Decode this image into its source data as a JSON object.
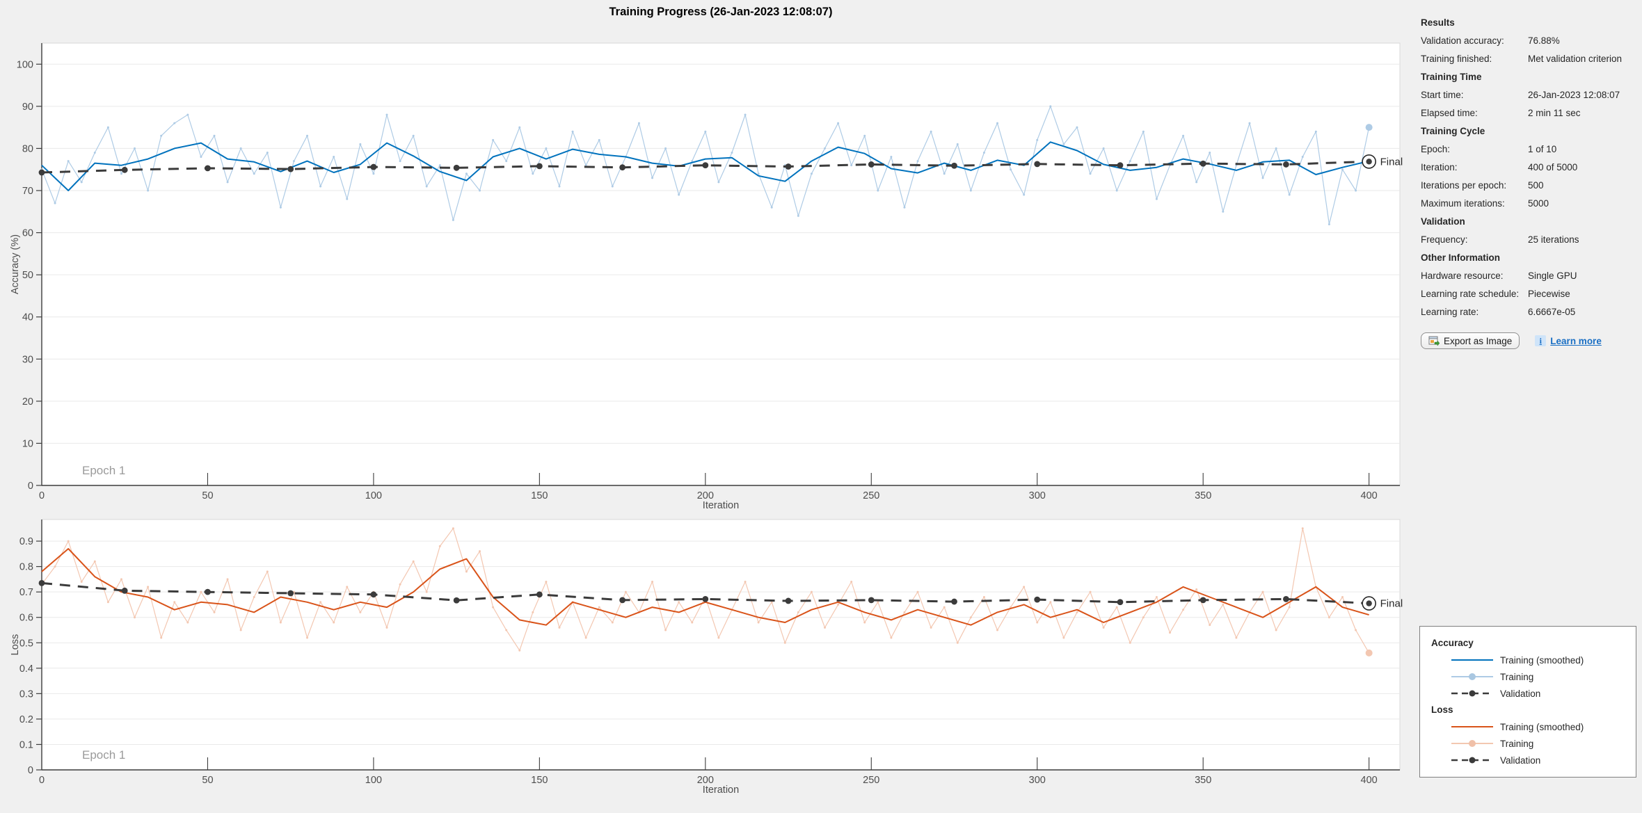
{
  "title": "Training Progress (26-Jan-2023 12:08:07)",
  "panel": {
    "sections": [
      {
        "header": "Results",
        "rows": [
          {
            "label": "Validation accuracy:",
            "value": "76.88%"
          },
          {
            "label": "Training finished:",
            "value": "Met validation criterion"
          }
        ]
      },
      {
        "header": "Training Time",
        "rows": [
          {
            "label": "Start time:",
            "value": "26-Jan-2023 12:08:07"
          },
          {
            "label": "Elapsed time:",
            "value": "2 min 11 sec"
          }
        ]
      },
      {
        "header": "Training Cycle",
        "rows": [
          {
            "label": "Epoch:",
            "value": "1 of 10"
          },
          {
            "label": "Iteration:",
            "value": "400 of 5000"
          },
          {
            "label": "Iterations per epoch:",
            "value": "500"
          },
          {
            "label": "Maximum iterations:",
            "value": "5000"
          }
        ]
      },
      {
        "header": "Validation",
        "rows": [
          {
            "label": "Frequency:",
            "value": "25 iterations"
          }
        ]
      },
      {
        "header": "Other Information",
        "rows": [
          {
            "label": "Hardware resource:",
            "value": "Single GPU"
          },
          {
            "label": "Learning rate schedule:",
            "value": "Piecewise"
          },
          {
            "label": "Learning rate:",
            "value": "6.6667e-05"
          }
        ]
      }
    ],
    "export_button_label": "Export as Image",
    "learn_more_label": "Learn more",
    "info_icon_glyph": "i"
  },
  "legend": {
    "groups": [
      {
        "header": "Accuracy",
        "items": [
          {
            "label": "Training (smoothed)",
            "color": "#0072bd",
            "width": 2
          },
          {
            "label": "Training",
            "color": "#aecbe5",
            "width": 2,
            "marker": "#a9c7e1",
            "marker_r": 5
          },
          {
            "label": "Validation",
            "color": "#3b3b3b",
            "width": 2.5,
            "dash": "9 6",
            "marker": "#3b3b3b",
            "marker_r": 4.5
          }
        ]
      },
      {
        "header": "Loss",
        "items": [
          {
            "label": "Training (smoothed)",
            "color": "#d95319",
            "width": 2
          },
          {
            "label": "Training",
            "color": "#f3c7b1",
            "width": 2,
            "marker": "#f0c0a8",
            "marker_r": 5
          },
          {
            "label": "Validation",
            "color": "#3b3b3b",
            "width": 2.5,
            "dash": "9 6",
            "marker": "#3b3b3b",
            "marker_r": 4.5
          }
        ]
      }
    ]
  },
  "colors": {
    "background": "#f0f0f0",
    "plot_bg": "#ffffff",
    "grid": "#e9e9e9",
    "box_light": "#d9d9d9",
    "spine_dark": "#3c3c3c",
    "tick_text": "#4d4d4d",
    "epoch_text": "#9a9a9a",
    "final_text": "#262626",
    "acc_smoothed": "#0072bd",
    "acc_raw": "#aecbe5",
    "loss_smoothed": "#d95319",
    "loss_raw": "#f3c7b1",
    "validation": "#3b3b3b",
    "link_blue": "#1a6fc4"
  },
  "chart_data": [
    {
      "type": "line",
      "name": "accuracy-chart",
      "xlabel": "Iteration",
      "ylabel": "Accuracy (%)",
      "epoch_label": "Epoch 1",
      "final_label": "Final",
      "xlim": [
        0,
        409.3
      ],
      "ylim": [
        0,
        105
      ],
      "xticks": [
        0,
        50,
        100,
        150,
        200,
        250,
        300,
        350,
        400
      ],
      "yticks": [
        0,
        10,
        20,
        30,
        40,
        50,
        60,
        70,
        80,
        90,
        100
      ],
      "grid": "horizontal",
      "final_point": {
        "x": 400,
        "y": 76.88
      },
      "series": [
        {
          "name": "Training",
          "color": "#aecbe5",
          "width": 1.2,
          "point_r": 1.5,
          "end_dot_r": 5,
          "x_start": 0,
          "x_step": 4,
          "y": [
            75,
            67,
            77,
            72,
            79,
            85,
            74,
            80,
            70,
            83,
            86,
            88,
            78,
            83,
            72,
            80,
            74,
            79,
            66,
            77,
            83,
            71,
            78,
            68,
            81,
            74,
            88,
            77,
            83,
            71,
            76,
            63,
            74,
            70,
            82,
            77,
            85,
            74,
            80,
            71,
            84,
            76,
            82,
            71,
            78,
            86,
            73,
            80,
            69,
            77,
            84,
            72,
            79,
            88,
            74,
            66,
            76,
            64,
            74,
            80,
            86,
            76,
            83,
            70,
            78,
            66,
            77,
            84,
            74,
            81,
            70,
            79,
            86,
            75,
            69,
            82,
            90,
            81,
            85,
            74,
            80,
            70,
            77,
            84,
            68,
            76,
            83,
            72,
            79,
            65,
            76,
            86,
            73,
            80,
            69,
            78,
            84,
            62,
            75,
            70,
            85
          ]
        },
        {
          "name": "Training (smoothed)",
          "color": "#0072bd",
          "width": 2,
          "x_start": 0,
          "x_step": 8,
          "y": [
            76,
            70,
            76.5,
            76,
            77.5,
            80,
            81.3,
            77.5,
            76.8,
            74.5,
            77,
            74.3,
            76.2,
            81.3,
            78.2,
            74.5,
            72.4,
            78,
            80,
            77.5,
            79.8,
            78.6,
            78,
            76.5,
            75.8,
            77.5,
            77.8,
            73.5,
            72.2,
            77,
            80.3,
            78.8,
            75.2,
            74.2,
            76.5,
            74.8,
            77.2,
            76,
            81.5,
            79.5,
            76.2,
            74.8,
            75.5,
            77.5,
            76.3,
            74.8,
            76.8,
            77.2,
            73.8,
            75.5,
            77
          ]
        },
        {
          "name": "Validation",
          "color": "#3b3b3b",
          "width": 3,
          "dash": "15 11",
          "marker_r": 4.4,
          "x_start": 0,
          "x_step": 25,
          "y": [
            74.3,
            74.9,
            75.3,
            75.1,
            75.6,
            75.4,
            75.8,
            75.5,
            76.0,
            75.7,
            76.2,
            75.9,
            76.3,
            76.0,
            76.4,
            76.2,
            76.88
          ]
        }
      ]
    },
    {
      "type": "line",
      "name": "loss-chart",
      "xlabel": "Iteration",
      "ylabel": "Loss",
      "epoch_label": "Epoch 1",
      "final_label": "Final",
      "xlim": [
        0,
        409.3
      ],
      "ylim": [
        0,
        0.985
      ],
      "xticks": [
        0,
        50,
        100,
        150,
        200,
        250,
        300,
        350,
        400
      ],
      "yticks": [
        0,
        0.1,
        0.2,
        0.3,
        0.4,
        0.5,
        0.6,
        0.7,
        0.8,
        0.9
      ],
      "grid": "horizontal",
      "final_point": {
        "x": 400,
        "y": 0.655
      },
      "series": [
        {
          "name": "Training",
          "color": "#f3c7b1",
          "width": 1.2,
          "point_r": 1.5,
          "end_dot_r": 5,
          "x_start": 0,
          "x_step": 4,
          "y": [
            0.73,
            0.8,
            0.9,
            0.74,
            0.82,
            0.66,
            0.75,
            0.6,
            0.72,
            0.52,
            0.66,
            0.58,
            0.7,
            0.62,
            0.75,
            0.55,
            0.68,
            0.78,
            0.58,
            0.7,
            0.52,
            0.66,
            0.58,
            0.72,
            0.62,
            0.7,
            0.56,
            0.73,
            0.82,
            0.7,
            0.88,
            0.95,
            0.78,
            0.86,
            0.64,
            0.55,
            0.47,
            0.62,
            0.74,
            0.56,
            0.66,
            0.52,
            0.64,
            0.58,
            0.7,
            0.62,
            0.74,
            0.55,
            0.66,
            0.58,
            0.68,
            0.52,
            0.63,
            0.74,
            0.58,
            0.66,
            0.5,
            0.62,
            0.7,
            0.56,
            0.65,
            0.74,
            0.58,
            0.66,
            0.52,
            0.62,
            0.7,
            0.56,
            0.64,
            0.5,
            0.6,
            0.68,
            0.55,
            0.64,
            0.72,
            0.58,
            0.66,
            0.52,
            0.62,
            0.7,
            0.56,
            0.64,
            0.5,
            0.6,
            0.68,
            0.54,
            0.63,
            0.71,
            0.57,
            0.65,
            0.52,
            0.62,
            0.7,
            0.55,
            0.64,
            0.95,
            0.72,
            0.6,
            0.68,
            0.55,
            0.46
          ]
        },
        {
          "name": "Training (smoothed)",
          "color": "#d95319",
          "width": 2,
          "x_start": 0,
          "x_step": 8,
          "y": [
            0.78,
            0.87,
            0.76,
            0.7,
            0.68,
            0.63,
            0.66,
            0.65,
            0.62,
            0.68,
            0.66,
            0.63,
            0.66,
            0.64,
            0.7,
            0.79,
            0.83,
            0.68,
            0.59,
            0.57,
            0.66,
            0.63,
            0.6,
            0.64,
            0.62,
            0.66,
            0.63,
            0.6,
            0.58,
            0.63,
            0.66,
            0.62,
            0.59,
            0.63,
            0.6,
            0.57,
            0.62,
            0.65,
            0.6,
            0.63,
            0.58,
            0.62,
            0.66,
            0.72,
            0.68,
            0.64,
            0.6,
            0.66,
            0.72,
            0.64,
            0.61
          ]
        },
        {
          "name": "Validation",
          "color": "#3b3b3b",
          "width": 3,
          "dash": "15 11",
          "marker_r": 4.4,
          "x_start": 0,
          "x_step": 25,
          "y": [
            0.735,
            0.705,
            0.7,
            0.695,
            0.69,
            0.667,
            0.69,
            0.668,
            0.672,
            0.665,
            0.668,
            0.662,
            0.67,
            0.66,
            0.668,
            0.672,
            0.655
          ]
        }
      ]
    }
  ]
}
